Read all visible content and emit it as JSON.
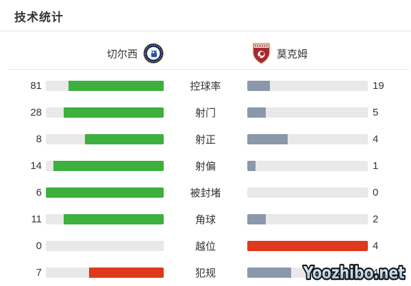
{
  "title": "技术统计",
  "teams": {
    "home": {
      "name": "切尔西",
      "badge": "chelsea-crest"
    },
    "away": {
      "name": "莫克姆",
      "badge": "morecambe-crest"
    }
  },
  "watermark": "Yoozhibo.net",
  "colors": {
    "green": "#3db03e",
    "slate": "#8b98ab",
    "red": "#de3a1b",
    "track": "#e9e9e9"
  },
  "chart_data": {
    "type": "bar",
    "layout": "mirrored-horizontal-comparison",
    "categories": [
      "控球率",
      "射门",
      "射正",
      "射偏",
      "被封堵",
      "角球",
      "越位",
      "犯规"
    ],
    "series": [
      {
        "name": "切尔西",
        "values": [
          81,
          28,
          8,
          14,
          6,
          11,
          0,
          7
        ]
      },
      {
        "name": "莫克姆",
        "values": [
          19,
          5,
          4,
          1,
          0,
          2,
          4,
          4
        ]
      }
    ],
    "rows": [
      {
        "label": "控球率",
        "home": 81,
        "away": 19,
        "home_color": "green",
        "away_color": "slate"
      },
      {
        "label": "射门",
        "home": 28,
        "away": 5,
        "home_color": "green",
        "away_color": "slate"
      },
      {
        "label": "射正",
        "home": 8,
        "away": 4,
        "home_color": "green",
        "away_color": "slate"
      },
      {
        "label": "射偏",
        "home": 14,
        "away": 1,
        "home_color": "green",
        "away_color": "slate"
      },
      {
        "label": "被封堵",
        "home": 6,
        "away": 0,
        "home_color": "green",
        "away_color": "slate"
      },
      {
        "label": "角球",
        "home": 11,
        "away": 2,
        "home_color": "green",
        "away_color": "slate"
      },
      {
        "label": "越位",
        "home": 0,
        "away": 4,
        "home_color": "green",
        "away_color": "red"
      },
      {
        "label": "犯规",
        "home": 7,
        "away": 4,
        "home_color": "red",
        "away_color": "slate"
      }
    ],
    "note": "bar fill fraction = value / (home + away); home bars grow right-to-left, away bars left-to-right"
  }
}
